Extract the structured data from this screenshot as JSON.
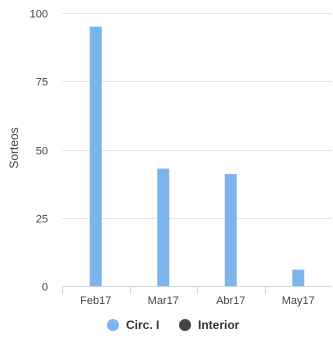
{
  "chart_data": {
    "type": "bar",
    "categories": [
      "Feb17",
      "Mar17",
      "Abr17",
      "May17"
    ],
    "series": [
      {
        "name": "Circ. I",
        "color": "#7cb5ec",
        "values": [
          95,
          43,
          41,
          6
        ]
      },
      {
        "name": "Interior",
        "color": "#434348",
        "values": [
          0,
          0,
          0,
          0
        ]
      }
    ],
    "ylabel": "Sorteos",
    "xlabel": "",
    "ylim": [
      0,
      100
    ],
    "yticks": [
      0,
      25,
      50,
      75,
      100
    ],
    "grid": true,
    "legend_position": "bottom-center"
  }
}
